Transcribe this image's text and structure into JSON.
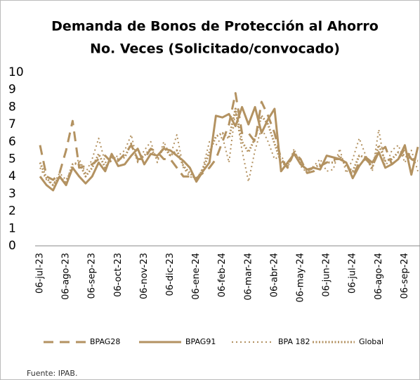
{
  "chart_data": {
    "type": "line",
    "title": "Demanda de Bonos de Protección al Ahorro",
    "subtitle": "No. Veces (Solicitado/convocado)",
    "source": "Fuente: IPAB.",
    "categories": [
      "06-jul-23",
      null,
      null,
      null,
      "06-ago-23",
      null,
      null,
      null,
      "06-sep-23",
      null,
      null,
      null,
      "06-oct-23",
      null,
      null,
      null,
      "06-nov-23",
      null,
      null,
      null,
      "06-dic-23",
      null,
      null,
      null,
      "06-ene-24",
      null,
      null,
      null,
      "06-feb-24",
      null,
      null,
      null,
      "06-mar-24",
      null,
      null,
      null,
      "06-abr-24",
      null,
      null,
      null,
      "06-may-24",
      null,
      null,
      null,
      "06-jun-24",
      null,
      null,
      null,
      "06-jul-24",
      null,
      null,
      null,
      "06-ago-24",
      null,
      null,
      null,
      "06-sep-24",
      null,
      null
    ],
    "ylim": [
      0,
      10
    ],
    "yticks": [
      0,
      1,
      2,
      3,
      4,
      5,
      6,
      7,
      8,
      9,
      10
    ],
    "grid": false,
    "legend": "bottom",
    "series": [
      {
        "name": "BPAG28",
        "color": "#b39261",
        "dash": "dashed",
        "values": [
          5.8,
          4.0,
          3.8,
          4.2,
          5.5,
          7.2,
          4.5,
          4.6,
          4.7,
          5.0,
          5.2,
          4.8,
          4.9,
          5.3,
          5.8,
          5.0,
          5.0,
          5.6,
          5.4,
          5.0,
          5.0,
          4.5,
          4.0,
          4.0,
          3.9,
          4.2,
          4.5,
          5.0,
          6.0,
          7.0,
          8.8,
          6.5,
          6.5,
          6.0,
          8.3,
          7.5,
          6.5,
          5.0,
          4.5,
          5.4,
          5.0,
          4.2,
          4.3,
          4.6,
          4.8,
          5.0,
          5.0,
          4.8,
          4.0,
          4.8,
          5.0,
          4.6,
          5.4,
          5.7,
          4.7,
          5.0,
          5.6,
          5.0,
          4.8
        ]
      },
      {
        "name": "BPAG91",
        "color": "#b39261",
        "dash": "solid",
        "values": [
          4.0,
          3.5,
          3.2,
          4.0,
          3.5,
          4.5,
          4.0,
          3.6,
          4.0,
          4.8,
          4.3,
          5.3,
          4.6,
          4.7,
          5.2,
          5.6,
          4.7,
          5.3,
          5.2,
          5.6,
          5.5,
          5.2,
          4.9,
          4.5,
          3.7,
          4.3,
          4.8,
          7.5,
          7.4,
          7.6,
          6.9,
          8.0,
          7.0,
          8.0,
          6.5,
          7.3,
          7.9,
          4.3,
          4.8,
          5.3,
          4.7,
          4.4,
          4.5,
          4.4,
          5.2,
          5.1,
          5.0,
          4.8,
          3.9,
          4.6,
          5.1,
          4.8,
          5.4,
          4.5,
          4.7,
          5.0,
          5.8,
          4.1,
          5.7
        ]
      },
      {
        "name": "BPA 182",
        "color": "#b39261",
        "dash": "dotted",
        "values": [
          4.5,
          3.8,
          3.5,
          4.2,
          3.8,
          4.5,
          5.0,
          4.2,
          5.0,
          6.2,
          4.8,
          5.0,
          5.2,
          5.5,
          6.4,
          4.8,
          5.5,
          6.0,
          4.8,
          6.0,
          5.2,
          6.4,
          4.5,
          4.0,
          3.8,
          4.5,
          6.0,
          5.8,
          6.3,
          4.8,
          7.8,
          5.5,
          3.7,
          5.5,
          6.8,
          6.0,
          5.0,
          5.2,
          4.5,
          5.6,
          4.6,
          4.2,
          4.6,
          5.0,
          4.3,
          4.4,
          5.6,
          4.2,
          5.0,
          6.2,
          5.2,
          4.3,
          6.7,
          4.5,
          5.5,
          5.8,
          4.8,
          5.5,
          4.3
        ]
      },
      {
        "name": "Global",
        "color": "#b39261",
        "dash": "heavy-dotted",
        "values": [
          4.8,
          3.9,
          3.5,
          4.0,
          3.6,
          4.7,
          4.8,
          4.0,
          4.5,
          5.3,
          4.5,
          5.1,
          5.0,
          5.1,
          5.9,
          4.9,
          5.2,
          5.6,
          5.0,
          5.7,
          5.2,
          5.5,
          4.6,
          4.2,
          3.8,
          4.4,
          5.4,
          6.3,
          6.5,
          6.2,
          7.9,
          6.0,
          5.4,
          6.2,
          7.5,
          7.0,
          5.9,
          4.8,
          4.6,
          5.4,
          4.8,
          4.3,
          4.5,
          4.7,
          4.8,
          4.8,
          5.2,
          4.6,
          4.3,
          5.2,
          5.1,
          4.5,
          5.8,
          4.9,
          5.0,
          5.4,
          5.2,
          5.0,
          4.9
        ]
      }
    ]
  }
}
